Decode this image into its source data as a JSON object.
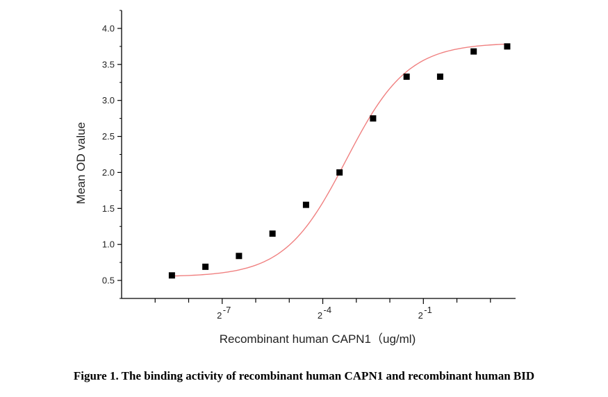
{
  "chart_data": {
    "type": "scatter",
    "ylabel": "Mean OD value",
    "xlabel": "Recombinant human CAPN1（ug/ml)",
    "xscale": "log2",
    "xlim": [
      -10.0,
      1.75
    ],
    "ylim": [
      0.25,
      4.25
    ],
    "yticks": [
      0.5,
      1.0,
      1.5,
      2.0,
      2.5,
      3.0,
      3.5,
      4.0
    ],
    "ytick_labels": [
      "0.5",
      "1.0",
      "1.5",
      "2.0",
      "2.5",
      "3.0",
      "3.5",
      "4.0"
    ],
    "xticks_major": [
      -7,
      -4,
      -1
    ],
    "xtick_labels": [
      {
        "base": "2",
        "exp": "-7"
      },
      {
        "base": "2",
        "exp": "-4"
      },
      {
        "base": "2",
        "exp": "-1"
      }
    ],
    "xticks_minor": [
      -9,
      -8,
      -6,
      -5,
      -3,
      -2,
      0,
      1
    ],
    "grid": false,
    "legend": "none",
    "series_color": "#000000",
    "fit_color": "#f08080",
    "points": [
      {
        "x": -8.5,
        "y": 0.57
      },
      {
        "x": -7.5,
        "y": 0.69
      },
      {
        "x": -6.5,
        "y": 0.84
      },
      {
        "x": -5.5,
        "y": 1.15
      },
      {
        "x": -4.5,
        "y": 1.55
      },
      {
        "x": -3.5,
        "y": 2.0
      },
      {
        "x": -2.5,
        "y": 2.75
      },
      {
        "x": -1.5,
        "y": 3.33
      },
      {
        "x": -0.5,
        "y": 3.33
      },
      {
        "x": 0.5,
        "y": 3.68
      },
      {
        "x": 1.5,
        "y": 3.75
      }
    ],
    "fit": {
      "model": "4PL",
      "bottom": 0.55,
      "top": 3.8,
      "ec50_log2": -3.3,
      "slope": 0.55,
      "x_range": [
        -8.5,
        1.5
      ]
    }
  },
  "caption": "Figure 1. The binding activity of recombinant human CAPN1 and recombinant human BID"
}
